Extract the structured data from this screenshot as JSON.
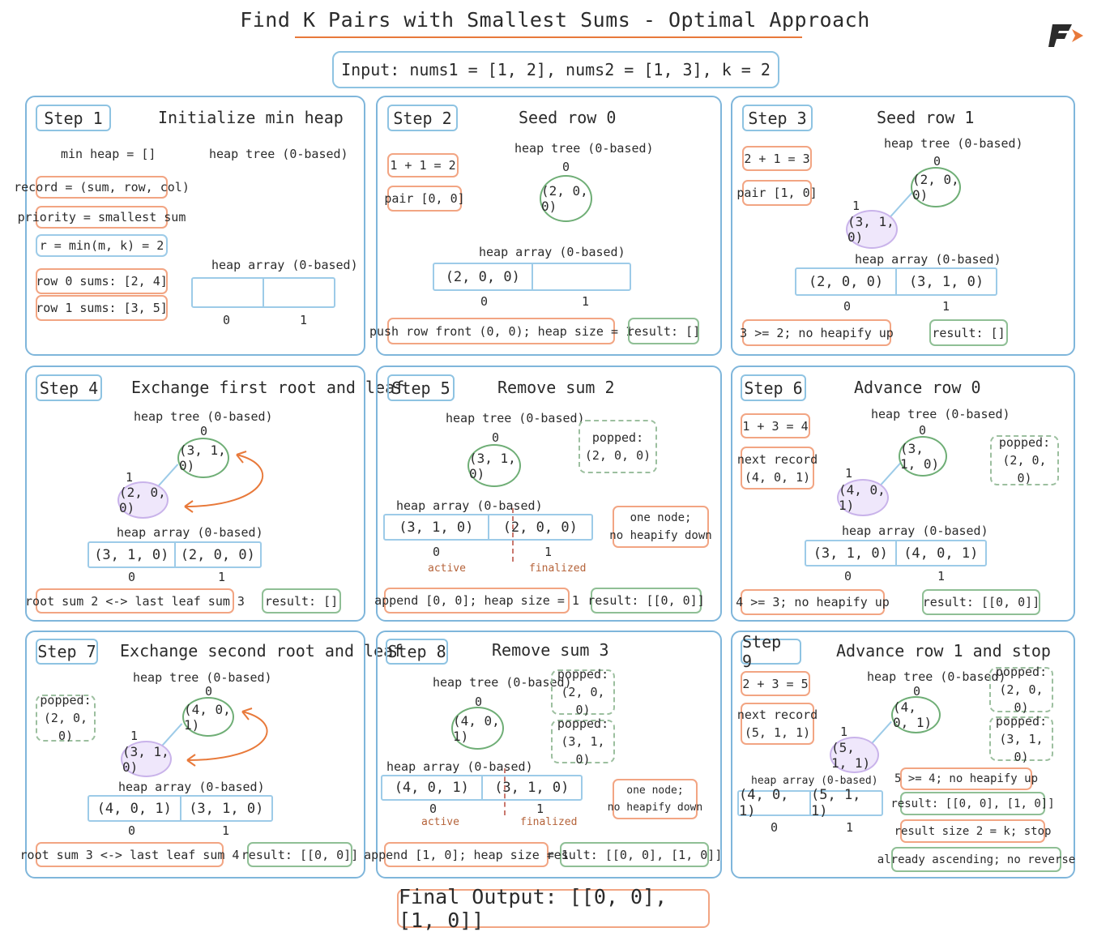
{
  "title": "Find K Pairs with Smallest Sums - Optimal Approach",
  "input": "Input: nums1 = [1, 2], nums2 = [1, 3], k = 2",
  "final_output": "Final Output: [[0, 0], [1, 0]]",
  "colors": {
    "panel_border": "#7fb6db",
    "orange": "#e8793a",
    "green": "#6fae76",
    "purple": "#efe7fb",
    "finalized": "#b5633a"
  },
  "labels": {
    "heap_tree": "heap tree (0-based)",
    "heap_array": "heap array (0-based)",
    "idx0": "0",
    "idx1": "1",
    "active": "active",
    "finalized": "finalized"
  },
  "steps": [
    {
      "tag": "Step 1",
      "title": "Initialize min heap",
      "min_heap": "min heap = []",
      "notes": [
        "record = (sum, row, col)",
        "priority = smallest sum",
        "r = min(m, k) = 2",
        "row 0 sums: [2, 4]",
        "row 1 sums: [3, 5]"
      ],
      "cells": [
        "",
        ""
      ]
    },
    {
      "tag": "Step 2",
      "title": "Seed row 0",
      "calc": "1 + 1 = 2",
      "pair": "pair [0, 0]",
      "root": "(2, 0, 0)",
      "cells": [
        "(2, 0, 0)",
        ""
      ],
      "action": "push row front (0, 0); heap size = 1",
      "result": "result: []"
    },
    {
      "tag": "Step 3",
      "title": "Seed row 1",
      "calc": "2 + 1 = 3",
      "pair": "pair [1, 0]",
      "root": "(2, 0, 0)",
      "leaf": "(3, 1, 0)",
      "cells": [
        "(2, 0, 0)",
        "(3, 1, 0)"
      ],
      "action": "3 >= 2; no heapify up",
      "result": "result: []"
    },
    {
      "tag": "Step 4",
      "title": "Exchange first root and leaf",
      "root": "(3, 1, 0)",
      "leaf": "(2, 0, 0)",
      "cells": [
        "(3, 1, 0)",
        "(2, 0, 0)"
      ],
      "action": "root sum 2 <-> last leaf sum 3",
      "result": "result: []"
    },
    {
      "tag": "Step 5",
      "title": "Remove sum 2",
      "root": "(3, 1, 0)",
      "popped": [
        "popped:",
        "(2, 0, 0)"
      ],
      "cells": [
        "(3, 1, 0)",
        "(2, 0, 0)"
      ],
      "info": [
        "one node;",
        "no heapify down"
      ],
      "action": "append [0, 0]; heap size = 1",
      "result": "result: [[0, 0]]"
    },
    {
      "tag": "Step 6",
      "title": "Advance row 0",
      "calc": "1 + 3 = 4",
      "next": [
        "next record",
        "(4, 0, 1)"
      ],
      "root": "(3, 1, 0)",
      "leaf": "(4, 0, 1)",
      "popped": [
        "popped:",
        "(2, 0, 0)"
      ],
      "cells": [
        "(3, 1, 0)",
        "(4, 0, 1)"
      ],
      "action": "4 >= 3; no heapify up",
      "result": "result: [[0, 0]]"
    },
    {
      "tag": "Step 7",
      "title": "Exchange second root and leaf",
      "popped": [
        "popped:",
        "(2, 0, 0)"
      ],
      "root": "(4, 0, 1)",
      "leaf": "(3, 1, 0)",
      "cells": [
        "(4, 0, 1)",
        "(3, 1, 0)"
      ],
      "action": "root sum 3 <-> last leaf sum 4",
      "result": "result: [[0, 0]]"
    },
    {
      "tag": "Step 8",
      "title": "Remove sum 3",
      "root": "(4, 0, 1)",
      "popped1": [
        "popped:",
        "(2, 0, 0)"
      ],
      "popped2": [
        "popped:",
        "(3, 1, 0)"
      ],
      "cells": [
        "(4, 0, 1)",
        "(3, 1, 0)"
      ],
      "info": [
        "one node;",
        "no heapify down"
      ],
      "action": "append [1, 0]; heap size = 1",
      "result": "result: [[0, 0], [1, 0]]"
    },
    {
      "tag": "Step 9",
      "title": "Advance row 1 and stop",
      "calc": "2 + 3 = 5",
      "next": [
        "next record",
        "(5, 1, 1)"
      ],
      "root": "(4, 0, 1)",
      "leaf": "(5, 1, 1)",
      "popped1": [
        "popped:",
        "(2, 0, 0)"
      ],
      "popped2": [
        "popped:",
        "(3, 1, 0)"
      ],
      "cells": [
        "(4, 0, 1)",
        "(5, 1, 1)"
      ],
      "notes": [
        "5 >= 4; no heapify up",
        "result: [[0, 0], [1, 0]]",
        "result size 2 = k; stop",
        "already ascending; no reverse"
      ]
    }
  ]
}
